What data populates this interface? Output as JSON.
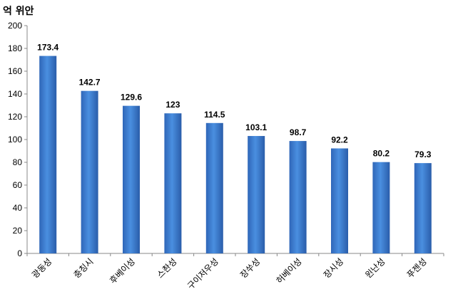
{
  "chart_data": {
    "type": "bar",
    "unit_label": "억 위안",
    "categories": [
      "광동성",
      "충칭시",
      "후베이성",
      "스촨성",
      "구이저우성",
      "장쑤성",
      "허베이성",
      "장시성",
      "윈난성",
      "푸젠성"
    ],
    "values": [
      173.4,
      142.7,
      129.6,
      123,
      114.5,
      103.1,
      98.7,
      92.2,
      80.2,
      79.3
    ],
    "value_labels": [
      "173.4",
      "142.7",
      "129.6",
      "123",
      "114.5",
      "103.1",
      "98.7",
      "92.2",
      "80.2",
      "79.3"
    ],
    "ylim": [
      0,
      200
    ],
    "yticks": [
      "0",
      "20",
      "40",
      "60",
      "80",
      "100",
      "120",
      "140",
      "160",
      "180",
      "200"
    ],
    "grid": false,
    "bar_color_top": "#4A90E2",
    "bar_color_bottom": "#1F4E99"
  }
}
